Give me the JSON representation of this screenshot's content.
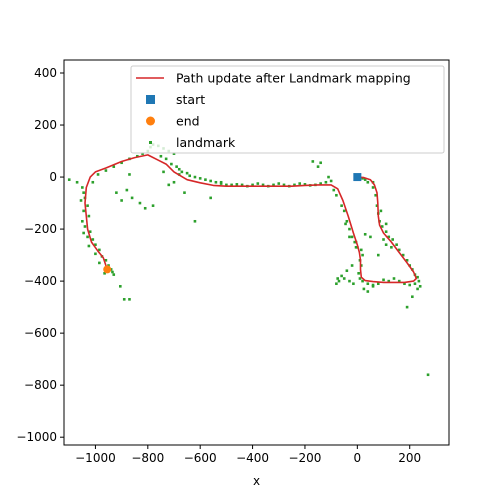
{
  "chart_data": {
    "type": "scatter",
    "xlabel": "x",
    "ylabel": "",
    "xlim": [
      -1120,
      350
    ],
    "ylim": [
      -1030,
      450
    ],
    "xticks": [
      -1000,
      -800,
      -600,
      -400,
      -200,
      0,
      200
    ],
    "yticks": [
      400,
      200,
      0,
      -200,
      -400,
      -600,
      -800,
      -1000
    ],
    "grid": false,
    "legend": {
      "placement": "top-right",
      "entries": [
        {
          "key": "path",
          "label": "Path update after Landmark mapping",
          "marker": "line",
          "color": "#d62728"
        },
        {
          "key": "start",
          "label": "start",
          "marker": "square",
          "color": "#1f77b4"
        },
        {
          "key": "end",
          "label": "end",
          "marker": "circle",
          "color": "#ff7f0e"
        },
        {
          "key": "landmark",
          "label": "landmark",
          "marker": "dot",
          "color": "#2ca02c"
        }
      ]
    },
    "path": {
      "color": "#d62728",
      "points": [
        [
          0,
          0
        ],
        [
          25,
          -2
        ],
        [
          50,
          -10
        ],
        [
          65,
          -30
        ],
        [
          75,
          -60
        ],
        [
          78,
          -100
        ],
        [
          80,
          -150
        ],
        [
          85,
          -185
        ],
        [
          100,
          -215
        ],
        [
          130,
          -250
        ],
        [
          160,
          -290
        ],
        [
          190,
          -330
        ],
        [
          215,
          -365
        ],
        [
          225,
          -390
        ],
        [
          215,
          -400
        ],
        [
          180,
          -405
        ],
        [
          140,
          -405
        ],
        [
          100,
          -405
        ],
        [
          60,
          -402
        ],
        [
          30,
          -398
        ],
        [
          15,
          -385
        ],
        [
          12,
          -355
        ],
        [
          12,
          -320
        ],
        [
          8,
          -290
        ],
        [
          0,
          -260
        ],
        [
          -15,
          -215
        ],
        [
          -35,
          -150
        ],
        [
          -55,
          -90
        ],
        [
          -75,
          -45
        ],
        [
          -100,
          -30
        ],
        [
          -150,
          -30
        ],
        [
          -200,
          -32
        ],
        [
          -250,
          -35
        ],
        [
          -300,
          -35
        ],
        [
          -350,
          -35
        ],
        [
          -400,
          -35
        ],
        [
          -450,
          -35
        ],
        [
          -500,
          -35
        ],
        [
          -550,
          -32
        ],
        [
          -600,
          -22
        ],
        [
          -650,
          -10
        ],
        [
          -700,
          20
        ],
        [
          -730,
          50
        ],
        [
          -760,
          65
        ],
        [
          -800,
          85
        ],
        [
          -850,
          75
        ],
        [
          -900,
          60
        ],
        [
          -960,
          35
        ],
        [
          -1000,
          20
        ],
        [
          -1020,
          0
        ],
        [
          -1035,
          -40
        ],
        [
          -1040,
          -100
        ],
        [
          -1035,
          -150
        ],
        [
          -1030,
          -200
        ],
        [
          -1015,
          -250
        ],
        [
          -990,
          -285
        ],
        [
          -970,
          -310
        ],
        [
          -960,
          -340
        ],
        [
          -955,
          -355
        ]
      ]
    },
    "start": {
      "x": 0,
      "y": 0,
      "color": "#1f77b4"
    },
    "end": {
      "x": -955,
      "y": -355,
      "color": "#ff7f0e"
    },
    "landmarks": {
      "color": "#2ca02c",
      "points": [
        [
          -1100,
          -10
        ],
        [
          -1070,
          -20
        ],
        [
          -1050,
          -40
        ],
        [
          -1045,
          -60
        ],
        [
          -1040,
          -80
        ],
        [
          -1055,
          -90
        ],
        [
          -1030,
          -110
        ],
        [
          -1045,
          -130
        ],
        [
          -1025,
          -150
        ],
        [
          -1050,
          -170
        ],
        [
          -1040,
          -190
        ],
        [
          -1020,
          -210
        ],
        [
          -1045,
          -215
        ],
        [
          -1030,
          -230
        ],
        [
          -1010,
          -240
        ],
        [
          -1000,
          -260
        ],
        [
          -1025,
          -265
        ],
        [
          -985,
          -280
        ],
        [
          -1000,
          -295
        ],
        [
          -975,
          -305
        ],
        [
          -960,
          -320
        ],
        [
          -985,
          -330
        ],
        [
          -950,
          -340
        ],
        [
          -940,
          -355
        ],
        [
          -935,
          -365
        ],
        [
          -965,
          -370
        ],
        [
          -930,
          -375
        ],
        [
          -890,
          -470
        ],
        [
          -870,
          -470
        ],
        [
          -905,
          -420
        ],
        [
          -1010,
          -20
        ],
        [
          -990,
          10
        ],
        [
          -960,
          25
        ],
        [
          -930,
          40
        ],
        [
          -900,
          55
        ],
        [
          -870,
          70
        ],
        [
          -840,
          80
        ],
        [
          -820,
          90
        ],
        [
          -800,
          100
        ],
        [
          -790,
          115
        ],
        [
          -780,
          125
        ],
        [
          -760,
          120
        ],
        [
          -740,
          110
        ],
        [
          -720,
          100
        ],
        [
          -700,
          90
        ],
        [
          -750,
          80
        ],
        [
          -730,
          70
        ],
        [
          -710,
          50
        ],
        [
          -690,
          40
        ],
        [
          -680,
          30
        ],
        [
          -670,
          20
        ],
        [
          -650,
          15
        ],
        [
          -640,
          5
        ],
        [
          -620,
          0
        ],
        [
          -600,
          -5
        ],
        [
          -580,
          -10
        ],
        [
          -560,
          -15
        ],
        [
          -540,
          -20
        ],
        [
          -520,
          -25
        ],
        [
          -500,
          -30
        ],
        [
          -480,
          -30
        ],
        [
          -460,
          -28
        ],
        [
          -440,
          -30
        ],
        [
          -420,
          -35
        ],
        [
          -400,
          -30
        ],
        [
          -380,
          -25
        ],
        [
          -360,
          -30
        ],
        [
          -340,
          -35
        ],
        [
          -320,
          -30
        ],
        [
          -300,
          -25
        ],
        [
          -280,
          -30
        ],
        [
          -260,
          -35
        ],
        [
          -240,
          -30
        ],
        [
          -220,
          -25
        ],
        [
          -200,
          -28
        ],
        [
          -180,
          -32
        ],
        [
          -160,
          -30
        ],
        [
          -140,
          -25
        ],
        [
          -120,
          -20
        ],
        [
          -100,
          -15
        ],
        [
          -150,
          40
        ],
        [
          -170,
          60
        ],
        [
          -140,
          55
        ],
        [
          -110,
          0
        ],
        [
          -90,
          -50
        ],
        [
          -80,
          -70
        ],
        [
          -60,
          -110
        ],
        [
          -50,
          -130
        ],
        [
          -40,
          -170
        ],
        [
          -30,
          -200
        ],
        [
          -20,
          -230
        ],
        [
          -10,
          -250
        ],
        [
          -5,
          -270
        ],
        [
          -30,
          -230
        ],
        [
          -45,
          -180
        ],
        [
          -780,
          -110
        ],
        [
          -810,
          -120
        ],
        [
          -830,
          -100
        ],
        [
          -860,
          -80
        ],
        [
          -900,
          -90
        ],
        [
          -920,
          -60
        ],
        [
          -880,
          -50
        ],
        [
          -870,
          10
        ],
        [
          -620,
          -170
        ],
        [
          -560,
          -80
        ],
        [
          -520,
          -20
        ],
        [
          -720,
          -30
        ],
        [
          -740,
          20
        ],
        [
          -660,
          -60
        ],
        [
          -680,
          10
        ],
        [
          -700,
          -20
        ],
        [
          5,
          -10
        ],
        [
          20,
          -5
        ],
        [
          40,
          -20
        ],
        [
          60,
          -40
        ],
        [
          70,
          -70
        ],
        [
          75,
          -110
        ],
        [
          80,
          -140
        ],
        [
          85,
          -170
        ],
        [
          95,
          -190
        ],
        [
          110,
          -210
        ],
        [
          120,
          -230
        ],
        [
          135,
          -240
        ],
        [
          150,
          -260
        ],
        [
          160,
          -280
        ],
        [
          175,
          -300
        ],
        [
          190,
          -320
        ],
        [
          200,
          -340
        ],
        [
          210,
          -355
        ],
        [
          220,
          -375
        ],
        [
          230,
          -385
        ],
        [
          235,
          -400
        ],
        [
          220,
          -410
        ],
        [
          200,
          -415
        ],
        [
          180,
          -410
        ],
        [
          160,
          -400
        ],
        [
          140,
          -390
        ],
        [
          120,
          -400
        ],
        [
          100,
          -395
        ],
        [
          80,
          -410
        ],
        [
          60,
          -415
        ],
        [
          40,
          -410
        ],
        [
          20,
          -400
        ],
        [
          10,
          -390
        ],
        [
          5,
          -370
        ],
        [
          15,
          -340
        ],
        [
          10,
          -320
        ],
        [
          20,
          -300
        ],
        [
          15,
          -280
        ],
        [
          0,
          -270
        ],
        [
          -5,
          -250
        ],
        [
          -20,
          -340
        ],
        [
          -40,
          -360
        ],
        [
          -60,
          -380
        ],
        [
          -70,
          -400
        ],
        [
          -80,
          -410
        ],
        [
          -75,
          -390
        ],
        [
          -50,
          -390
        ],
        [
          -30,
          -400
        ],
        [
          -15,
          -410
        ],
        [
          25,
          -430
        ],
        [
          40,
          -440
        ],
        [
          60,
          -420
        ],
        [
          190,
          -500
        ],
        [
          210,
          -460
        ],
        [
          230,
          -430
        ],
        [
          240,
          -420
        ],
        [
          100,
          -240
        ],
        [
          130,
          -270
        ],
        [
          110,
          -180
        ],
        [
          90,
          -130
        ],
        [
          60,
          -20
        ],
        [
          30,
          -10
        ],
        [
          110,
          -260
        ],
        [
          50,
          -230
        ],
        [
          30,
          -220
        ],
        [
          80,
          -300
        ],
        [
          270,
          -760
        ]
      ]
    }
  }
}
